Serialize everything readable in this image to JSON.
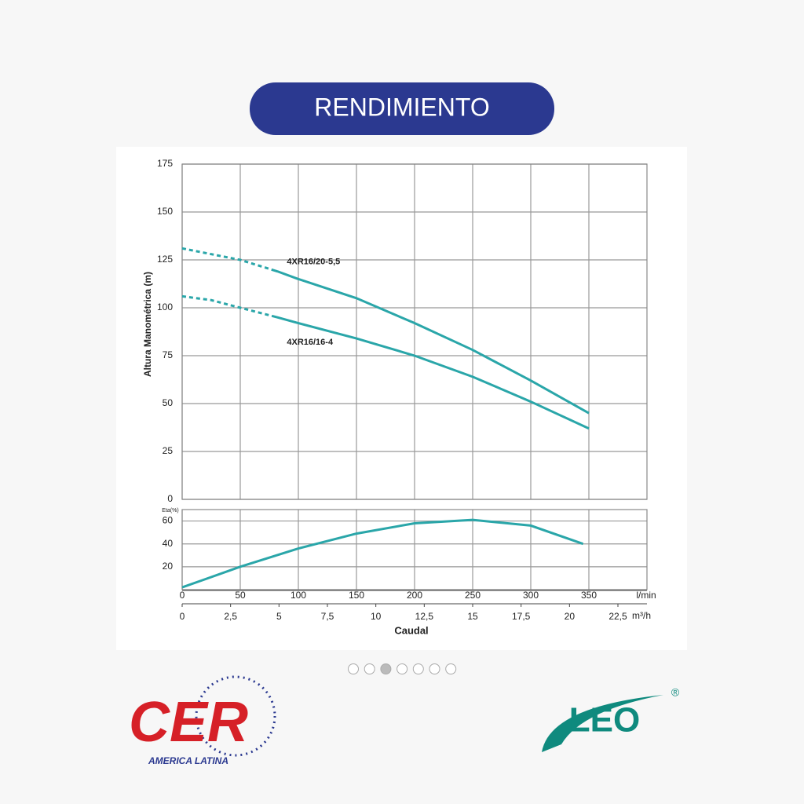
{
  "header": {
    "title": "RENDIMIENTO"
  },
  "chart_data": [
    {
      "type": "line",
      "y_label": "Altura Manométrica (m)",
      "xlim": [
        0,
        400
      ],
      "xticks": [
        0,
        50,
        100,
        150,
        200,
        250,
        300,
        350
      ],
      "ylim": [
        0,
        175
      ],
      "yticks": [
        0,
        25,
        50,
        75,
        100,
        125,
        150,
        175
      ],
      "grid": true,
      "series": [
        {
          "name": "4XR16/20-5,5",
          "color": "#2aa6a9",
          "dash_until_x": 82,
          "x": [
            0,
            25,
            50,
            82,
            100,
            150,
            200,
            250,
            300,
            350
          ],
          "values": [
            131,
            128,
            125,
            119,
            115,
            105,
            92,
            78,
            62,
            45
          ]
        },
        {
          "name": "4XR16/16-4",
          "color": "#2aa6a9",
          "dash_until_x": 82,
          "x": [
            0,
            25,
            50,
            82,
            100,
            150,
            200,
            250,
            300,
            350
          ],
          "values": [
            106,
            104,
            100,
            95,
            92,
            84,
            75,
            64,
            51,
            37
          ]
        }
      ]
    },
    {
      "type": "line",
      "y_label": "Eta(%)",
      "x_label": "Caudal",
      "x_unit": "l/min",
      "x2_unit": "m³/h",
      "xlim": [
        0,
        400
      ],
      "xticks": [
        0,
        50,
        100,
        150,
        200,
        250,
        300,
        350
      ],
      "x2lim": [
        0,
        24
      ],
      "x2ticks": [
        0,
        {
          "value": 2.5,
          "label": "2,5"
        },
        5,
        {
          "value": 7.5,
          "label": "7,5"
        },
        10,
        {
          "value": 12.5,
          "label": "12,5"
        },
        15,
        {
          "value": 17.5,
          "label": "17,5"
        },
        20,
        {
          "value": 22.5,
          "label": "22,5"
        }
      ],
      "ylim": [
        0,
        70
      ],
      "yticks": [
        20,
        40,
        60
      ],
      "grid": true,
      "series": [
        {
          "name": "Eta",
          "color": "#2aa6a9",
          "x": [
            0,
            50,
            100,
            150,
            200,
            250,
            300,
            345
          ],
          "values": [
            2,
            20,
            36,
            49,
            58,
            61,
            56,
            40
          ]
        }
      ]
    }
  ],
  "pagination": {
    "count": 7,
    "active": 2
  },
  "logos": {
    "left": "CER",
    "left_sub": "AMERICA LATINA",
    "right": "LEO",
    "right_mark": "®"
  }
}
